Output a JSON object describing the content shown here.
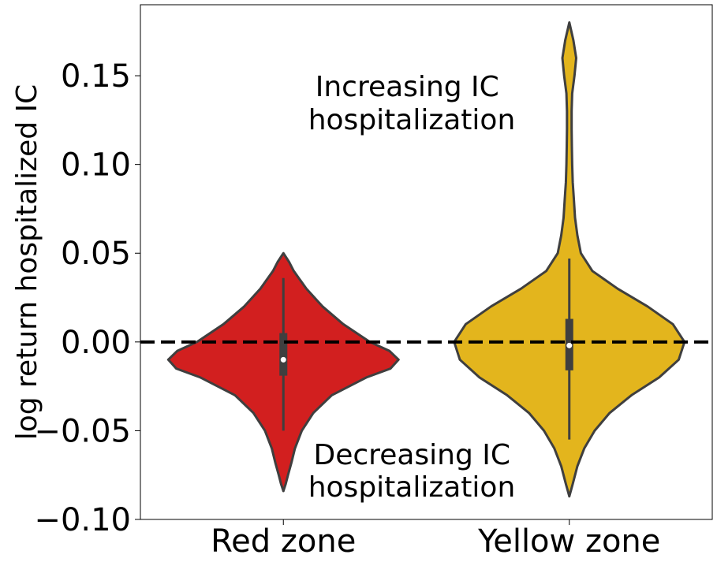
{
  "chart_data": {
    "type": "violin",
    "title": "",
    "xlabel": "",
    "ylabel": "log return hospitalized IC",
    "categories": [
      "Red zone",
      "Yellow zone"
    ],
    "ylim": [
      -0.1,
      0.19
    ],
    "yticks": [
      -0.1,
      -0.05,
      0.0,
      0.05,
      0.1,
      0.15
    ],
    "ytick_labels": [
      "−0.10",
      "−0.05",
      "0.00",
      "0.05",
      "0.10",
      "0.15"
    ],
    "grid": false,
    "reference_line": {
      "y": 0.0,
      "style": "dashed",
      "color": "#000000"
    },
    "series": [
      {
        "category": "Red zone",
        "color": "#d21f1f",
        "min": -0.084,
        "max": 0.05,
        "whisker_low": -0.05,
        "whisker_high": 0.036,
        "q1": -0.019,
        "q3": 0.005,
        "median": -0.01,
        "density_profile": [
          [
            -0.084,
            0.0
          ],
          [
            -0.08,
            0.02
          ],
          [
            -0.075,
            0.04
          ],
          [
            -0.068,
            0.07
          ],
          [
            -0.06,
            0.1
          ],
          [
            -0.05,
            0.16
          ],
          [
            -0.04,
            0.26
          ],
          [
            -0.03,
            0.42
          ],
          [
            -0.02,
            0.72
          ],
          [
            -0.015,
            0.93
          ],
          [
            -0.01,
            1.0
          ],
          [
            -0.005,
            0.92
          ],
          [
            0.0,
            0.75
          ],
          [
            0.01,
            0.52
          ],
          [
            0.02,
            0.34
          ],
          [
            0.03,
            0.2
          ],
          [
            0.04,
            0.09
          ],
          [
            0.045,
            0.05
          ],
          [
            0.05,
            0.0
          ]
        ]
      },
      {
        "category": "Yellow zone",
        "color": "#e3b51d",
        "min": -0.087,
        "max": 0.18,
        "whisker_low": -0.055,
        "whisker_high": 0.047,
        "q1": -0.016,
        "q3": 0.013,
        "median": -0.002,
        "density_profile": [
          [
            -0.087,
            0.0
          ],
          [
            -0.08,
            0.03
          ],
          [
            -0.07,
            0.07
          ],
          [
            -0.06,
            0.13
          ],
          [
            -0.05,
            0.22
          ],
          [
            -0.04,
            0.35
          ],
          [
            -0.03,
            0.54
          ],
          [
            -0.02,
            0.78
          ],
          [
            -0.01,
            0.95
          ],
          [
            0.0,
            1.0
          ],
          [
            0.01,
            0.9
          ],
          [
            0.02,
            0.68
          ],
          [
            0.03,
            0.42
          ],
          [
            0.04,
            0.2
          ],
          [
            0.05,
            0.1
          ],
          [
            0.06,
            0.07
          ],
          [
            0.07,
            0.05
          ],
          [
            0.08,
            0.04
          ],
          [
            0.09,
            0.03
          ],
          [
            0.1,
            0.025
          ],
          [
            0.11,
            0.022
          ],
          [
            0.12,
            0.02
          ],
          [
            0.13,
            0.02
          ],
          [
            0.14,
            0.025
          ],
          [
            0.15,
            0.045
          ],
          [
            0.16,
            0.06
          ],
          [
            0.17,
            0.035
          ],
          [
            0.18,
            0.0
          ]
        ]
      }
    ],
    "annotations": [
      {
        "lines": [
          "Increasing IC",
          "hospitalization"
        ]
      },
      {
        "lines": [
          "Decreasing IC",
          "hospitalization"
        ]
      }
    ]
  }
}
